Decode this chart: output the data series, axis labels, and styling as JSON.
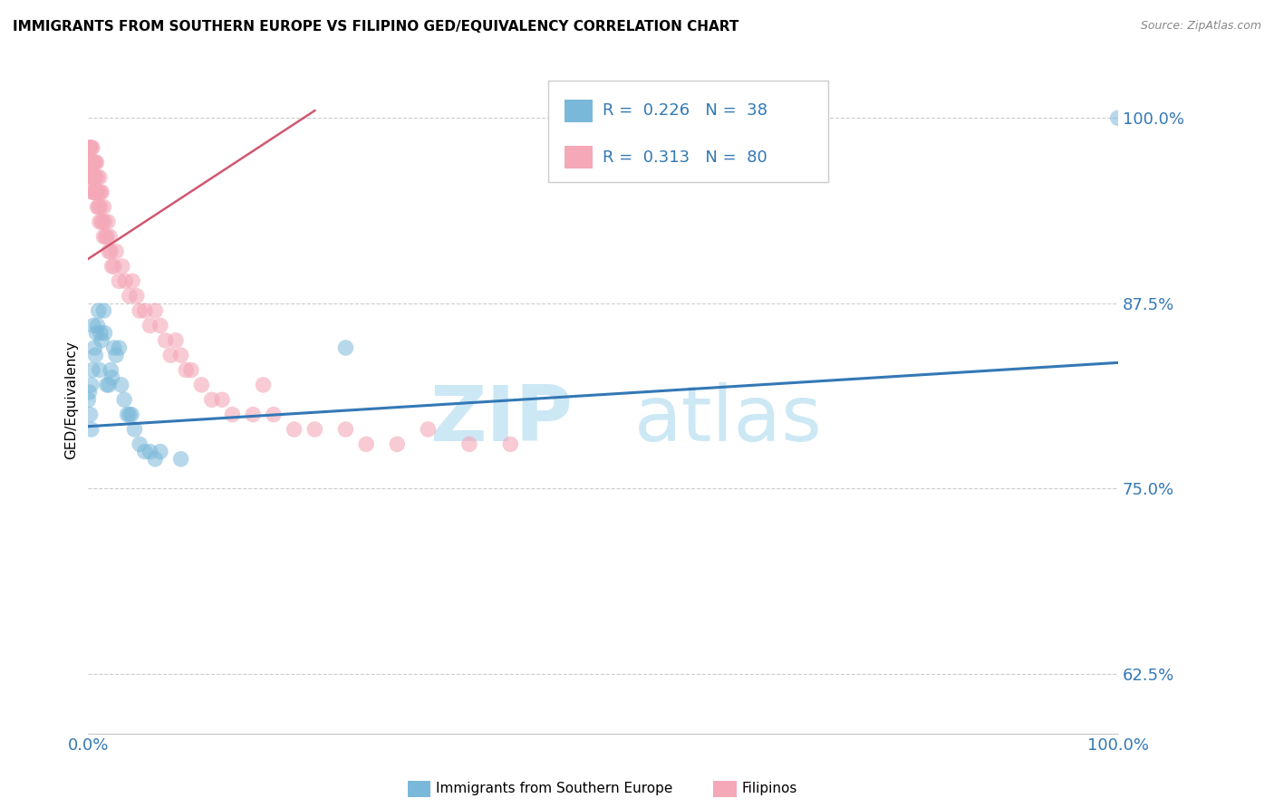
{
  "title": "IMMIGRANTS FROM SOUTHERN EUROPE VS FILIPINO GED/EQUIVALENCY CORRELATION CHART",
  "source_text": "Source: ZipAtlas.com",
  "ylabel": "GED/Equivalency",
  "xlim": [
    0.0,
    1.0
  ],
  "ylim": [
    0.585,
    1.035
  ],
  "yticks": [
    0.625,
    0.75,
    0.875,
    1.0
  ],
  "ytick_labels": [
    "62.5%",
    "75.0%",
    "87.5%",
    "100.0%"
  ],
  "xtick_labels": [
    "0.0%",
    "100.0%"
  ],
  "legend_r1": "0.226",
  "legend_n1": "38",
  "legend_r2": "0.313",
  "legend_n2": "80",
  "legend_label1": "Immigrants from Southern Europe",
  "legend_label2": "Filipinos",
  "blue_color": "#7ab8d9",
  "pink_color": "#f4a8b8",
  "blue_line_color": "#3478b5",
  "pink_line_color": "#d05870",
  "label_color": "#3478b5",
  "watermark_zip": "ZIP",
  "watermark_atlas": "atlas",
  "watermark_color": "#cde8f5",
  "blue_points_x": [
    0.0,
    0.001,
    0.002,
    0.003,
    0.003,
    0.004,
    0.005,
    0.006,
    0.007,
    0.008,
    0.009,
    0.01,
    0.011,
    0.012,
    0.013,
    0.015,
    0.016,
    0.018,
    0.02,
    0.022,
    0.023,
    0.025,
    0.027,
    0.03,
    0.032,
    0.035,
    0.038,
    0.04,
    0.042,
    0.045,
    0.05,
    0.055,
    0.06,
    0.065,
    0.07,
    0.09,
    0.25,
    1.0
  ],
  "blue_points_y": [
    0.81,
    0.815,
    0.8,
    0.79,
    0.82,
    0.83,
    0.86,
    0.845,
    0.84,
    0.855,
    0.86,
    0.87,
    0.83,
    0.855,
    0.85,
    0.87,
    0.855,
    0.82,
    0.82,
    0.83,
    0.825,
    0.845,
    0.84,
    0.845,
    0.82,
    0.81,
    0.8,
    0.8,
    0.8,
    0.79,
    0.78,
    0.775,
    0.775,
    0.77,
    0.775,
    0.77,
    0.845,
    1.0
  ],
  "pink_points_x": [
    0.0,
    0.0,
    0.001,
    0.001,
    0.001,
    0.002,
    0.002,
    0.002,
    0.003,
    0.003,
    0.003,
    0.004,
    0.004,
    0.004,
    0.005,
    0.005,
    0.005,
    0.006,
    0.006,
    0.006,
    0.007,
    0.007,
    0.007,
    0.008,
    0.008,
    0.009,
    0.009,
    0.01,
    0.01,
    0.011,
    0.011,
    0.012,
    0.012,
    0.013,
    0.013,
    0.014,
    0.015,
    0.015,
    0.016,
    0.017,
    0.018,
    0.019,
    0.02,
    0.021,
    0.022,
    0.023,
    0.025,
    0.027,
    0.03,
    0.033,
    0.036,
    0.04,
    0.043,
    0.047,
    0.05,
    0.055,
    0.06,
    0.065,
    0.07,
    0.075,
    0.08,
    0.085,
    0.09,
    0.095,
    0.1,
    0.11,
    0.12,
    0.13,
    0.14,
    0.16,
    0.18,
    0.2,
    0.22,
    0.25,
    0.27,
    0.3,
    0.33,
    0.37,
    0.41,
    0.17
  ],
  "pink_points_y": [
    0.97,
    0.98,
    0.97,
    0.96,
    0.98,
    0.96,
    0.97,
    0.98,
    0.96,
    0.97,
    0.98,
    0.95,
    0.97,
    0.98,
    0.96,
    0.97,
    0.95,
    0.95,
    0.97,
    0.96,
    0.95,
    0.97,
    0.96,
    0.95,
    0.97,
    0.96,
    0.94,
    0.95,
    0.94,
    0.96,
    0.93,
    0.94,
    0.95,
    0.93,
    0.95,
    0.93,
    0.92,
    0.94,
    0.93,
    0.92,
    0.92,
    0.93,
    0.91,
    0.92,
    0.91,
    0.9,
    0.9,
    0.91,
    0.89,
    0.9,
    0.89,
    0.88,
    0.89,
    0.88,
    0.87,
    0.87,
    0.86,
    0.87,
    0.86,
    0.85,
    0.84,
    0.85,
    0.84,
    0.83,
    0.83,
    0.82,
    0.81,
    0.81,
    0.8,
    0.8,
    0.8,
    0.79,
    0.79,
    0.79,
    0.78,
    0.78,
    0.79,
    0.78,
    0.78,
    0.82
  ],
  "blue_trend": [
    0.0,
    1.0,
    0.792,
    0.835
  ],
  "pink_trend": [
    0.0,
    0.22,
    0.905,
    1.005
  ]
}
